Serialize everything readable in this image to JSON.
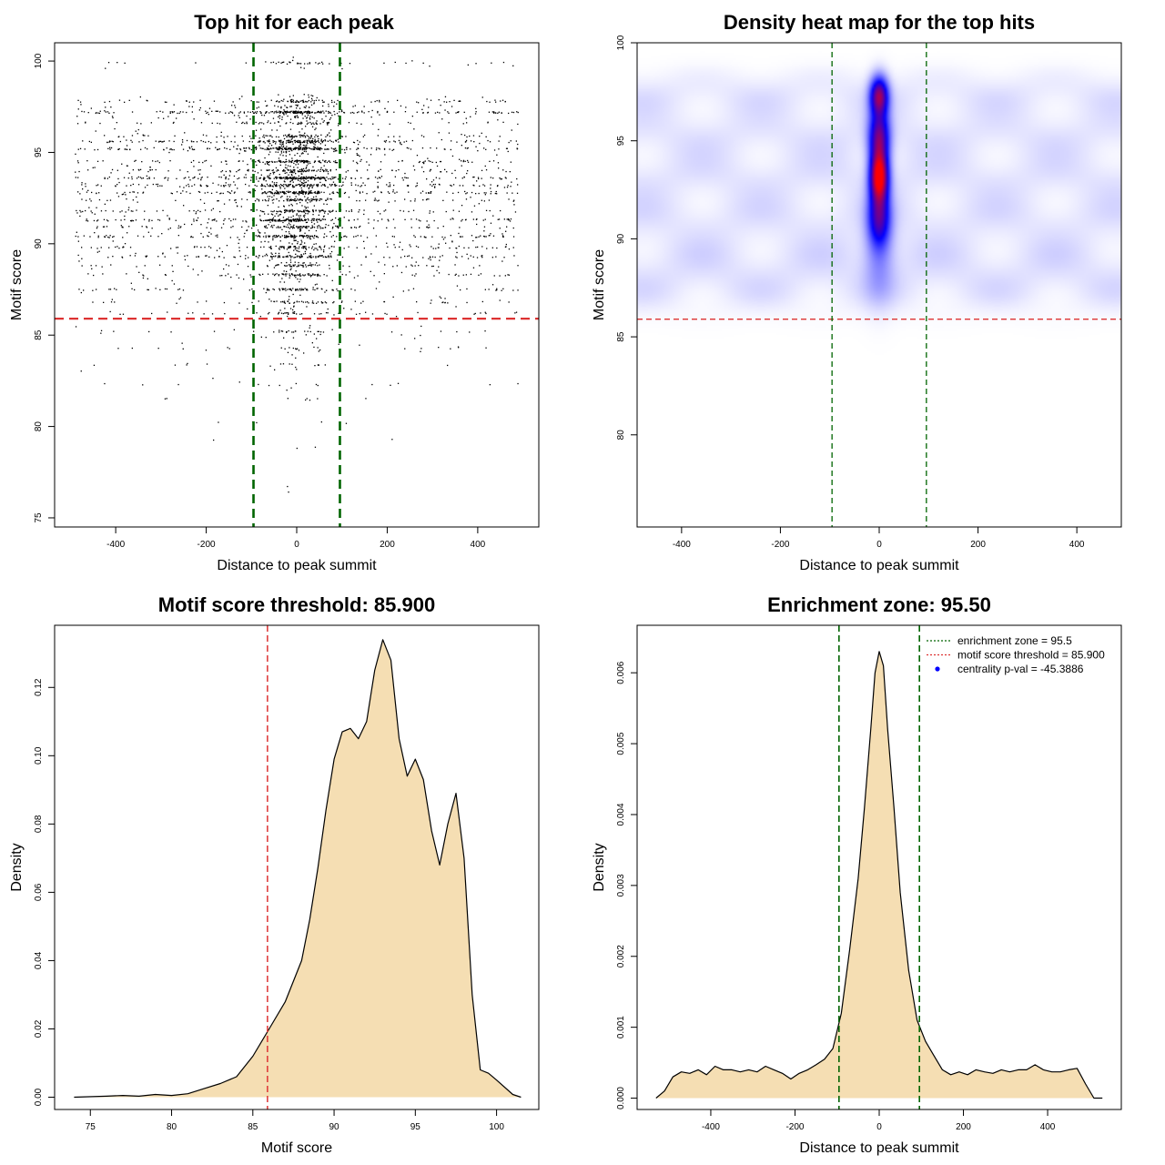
{
  "colors": {
    "threshold_line": "#dd3333",
    "zone_line": "#006400",
    "density_fill": "#f5deb3",
    "heat_low": "#ffffff",
    "heat_mid": "#0000ff",
    "heat_high": "#ff0000",
    "point": "#000000"
  },
  "chart_data": [
    {
      "id": "p1",
      "type": "scatter",
      "title": "Top hit for each peak",
      "xlabel": "Distance to peak summit",
      "ylabel": "Motif score",
      "xlim": [
        -535,
        535
      ],
      "ylim": [
        74.5,
        101
      ],
      "xticks": [
        -400,
        -200,
        0,
        200,
        400
      ],
      "yticks": [
        75,
        80,
        85,
        90,
        95,
        100
      ],
      "hlines": [
        85.9
      ],
      "vlines": [
        -95.5,
        95.5
      ],
      "point_count": 4200,
      "score_levels": [
        {
          "score": 99.9,
          "weight": 2
        },
        {
          "score": 97.8,
          "weight": 4
        },
        {
          "score": 97.2,
          "weight": 10
        },
        {
          "score": 96.6,
          "weight": 4
        },
        {
          "score": 95.9,
          "weight": 4
        },
        {
          "score": 95.6,
          "weight": 6
        },
        {
          "score": 95.2,
          "weight": 10
        },
        {
          "score": 94.5,
          "weight": 6
        },
        {
          "score": 94.0,
          "weight": 5
        },
        {
          "score": 93.6,
          "weight": 9
        },
        {
          "score": 93.2,
          "weight": 7
        },
        {
          "score": 92.8,
          "weight": 7
        },
        {
          "score": 92.4,
          "weight": 5
        },
        {
          "score": 91.8,
          "weight": 5
        },
        {
          "score": 91.3,
          "weight": 8
        },
        {
          "score": 90.9,
          "weight": 5
        },
        {
          "score": 90.4,
          "weight": 7
        },
        {
          "score": 89.8,
          "weight": 4
        },
        {
          "score": 89.3,
          "weight": 6
        },
        {
          "score": 88.8,
          "weight": 3
        },
        {
          "score": 88.3,
          "weight": 4
        },
        {
          "score": 87.5,
          "weight": 3
        },
        {
          "score": 86.8,
          "weight": 3
        },
        {
          "score": 86.2,
          "weight": 2
        },
        {
          "score": 85.2,
          "weight": 1.2
        },
        {
          "score": 84.3,
          "weight": 0.8
        },
        {
          "score": 83.4,
          "weight": 0.6
        },
        {
          "score": 82.3,
          "weight": 0.5
        },
        {
          "score": 81.5,
          "weight": 0.3
        },
        {
          "score": 80.2,
          "weight": 0.15
        },
        {
          "score": 79.2,
          "weight": 0.15
        },
        {
          "score": 76.7,
          "weight": 0.05
        }
      ]
    },
    {
      "id": "p2",
      "type": "heatmap",
      "title": "Density heat map for the top hits",
      "xlabel": "Distance to peak summit",
      "ylabel": "Motif score",
      "xlim": [
        -490,
        490
      ],
      "ylim": [
        75.3,
        100
      ],
      "xticks": [
        -400,
        -200,
        0,
        200,
        400
      ],
      "yticks": [
        80,
        85,
        90,
        95,
        100
      ],
      "hlines": [
        85.9
      ],
      "vlines": [
        -95.5,
        95.5
      ],
      "hotspots": [
        {
          "x": 0,
          "y": 93.2,
          "sx": 13,
          "sy": 0.9,
          "w": 1.2
        },
        {
          "x": 0,
          "y": 97.3,
          "sx": 13,
          "sy": 0.7,
          "w": 0.85
        },
        {
          "x": 0,
          "y": 95.2,
          "sx": 15,
          "sy": 0.9,
          "w": 0.75
        },
        {
          "x": 0,
          "y": 91.0,
          "sx": 16,
          "sy": 1.0,
          "w": 0.6
        },
        {
          "x": 0,
          "y": 89.0,
          "sx": 22,
          "sy": 1.5,
          "w": 0.2
        }
      ]
    },
    {
      "id": "p3",
      "type": "area",
      "title": "Motif score threshold: 85.900",
      "xlabel": "Motif score",
      "ylabel": "Density",
      "xlim": [
        72.8,
        102.6
      ],
      "ylim": [
        -0.0036,
        0.1382
      ],
      "xticks": [
        75,
        80,
        85,
        90,
        95,
        100
      ],
      "yticks": [
        0.0,
        0.02,
        0.04,
        0.06,
        0.08,
        0.1,
        0.12
      ],
      "ytick_labels": [
        "0.00",
        "0.02",
        "0.04",
        "0.06",
        "0.08",
        "0.10",
        "0.12"
      ],
      "vlines": [
        85.9
      ],
      "x": [
        74,
        76,
        77,
        78,
        79,
        80,
        81,
        82,
        83,
        84,
        85,
        86,
        87,
        88,
        88.5,
        89,
        89.5,
        90,
        90.5,
        91,
        91.5,
        92,
        92.5,
        93,
        93.5,
        94,
        94.5,
        95,
        95.5,
        96,
        96.5,
        97,
        97.5,
        98,
        98.5,
        99,
        99.5,
        100,
        101,
        101.5
      ],
      "y": [
        0.0,
        0.0003,
        0.0005,
        0.0003,
        0.0008,
        0.0005,
        0.001,
        0.0025,
        0.004,
        0.006,
        0.012,
        0.02,
        0.028,
        0.04,
        0.052,
        0.067,
        0.084,
        0.099,
        0.107,
        0.108,
        0.105,
        0.11,
        0.125,
        0.134,
        0.128,
        0.105,
        0.094,
        0.099,
        0.093,
        0.078,
        0.068,
        0.08,
        0.089,
        0.07,
        0.03,
        0.008,
        0.007,
        0.005,
        0.0008,
        0.0
      ]
    },
    {
      "id": "p4",
      "type": "area",
      "title": "Enrichment zone: 95.50",
      "xlabel": "Distance to peak summit",
      "ylabel": "Density",
      "xlim": [
        -575,
        575
      ],
      "ylim": [
        -0.00016,
        0.00667
      ],
      "xticks": [
        -400,
        -200,
        0,
        200,
        400
      ],
      "yticks": [
        0.0,
        0.001,
        0.002,
        0.003,
        0.004,
        0.005,
        0.006
      ],
      "ytick_labels": [
        "0.000",
        "0.001",
        "0.002",
        "0.003",
        "0.004",
        "0.005",
        "0.006"
      ],
      "vlines": [
        -95.5,
        95.5
      ],
      "x": [
        -530,
        -510,
        -490,
        -470,
        -450,
        -430,
        -410,
        -390,
        -370,
        -350,
        -330,
        -310,
        -290,
        -270,
        -250,
        -230,
        -210,
        -190,
        -170,
        -150,
        -130,
        -110,
        -90,
        -70,
        -50,
        -35,
        -20,
        -10,
        0,
        10,
        20,
        35,
        50,
        70,
        90,
        110,
        130,
        150,
        170,
        190,
        210,
        230,
        250,
        270,
        290,
        310,
        330,
        350,
        370,
        390,
        410,
        430,
        450,
        470,
        490,
        510,
        530
      ],
      "y": [
        0.0,
        0.0001,
        0.0003,
        0.00037,
        0.00035,
        0.0004,
        0.00033,
        0.00045,
        0.0004,
        0.0004,
        0.00037,
        0.0004,
        0.00037,
        0.00045,
        0.0004,
        0.00035,
        0.00027,
        0.00035,
        0.0004,
        0.00047,
        0.00055,
        0.0007,
        0.0012,
        0.0021,
        0.0031,
        0.0041,
        0.0052,
        0.006,
        0.0063,
        0.0061,
        0.0052,
        0.0041,
        0.0029,
        0.0018,
        0.0011,
        0.0008,
        0.0006,
        0.0004,
        0.00033,
        0.00037,
        0.00033,
        0.0004,
        0.00037,
        0.00035,
        0.0004,
        0.00037,
        0.0004,
        0.0004,
        0.00047,
        0.0004,
        0.00037,
        0.00037,
        0.0004,
        0.00042,
        0.0002,
        0.0,
        0.0
      ],
      "legend": {
        "position": "top-right",
        "items": [
          {
            "label": "enrichment zone = 95.5",
            "kind": "line",
            "color": "#006400"
          },
          {
            "label": "motif score threshold = 85.900",
            "kind": "line",
            "color": "#dd3333"
          },
          {
            "label": "centrality p-val = -45.3886",
            "kind": "point",
            "color": "#0000ff"
          }
        ]
      }
    }
  ]
}
